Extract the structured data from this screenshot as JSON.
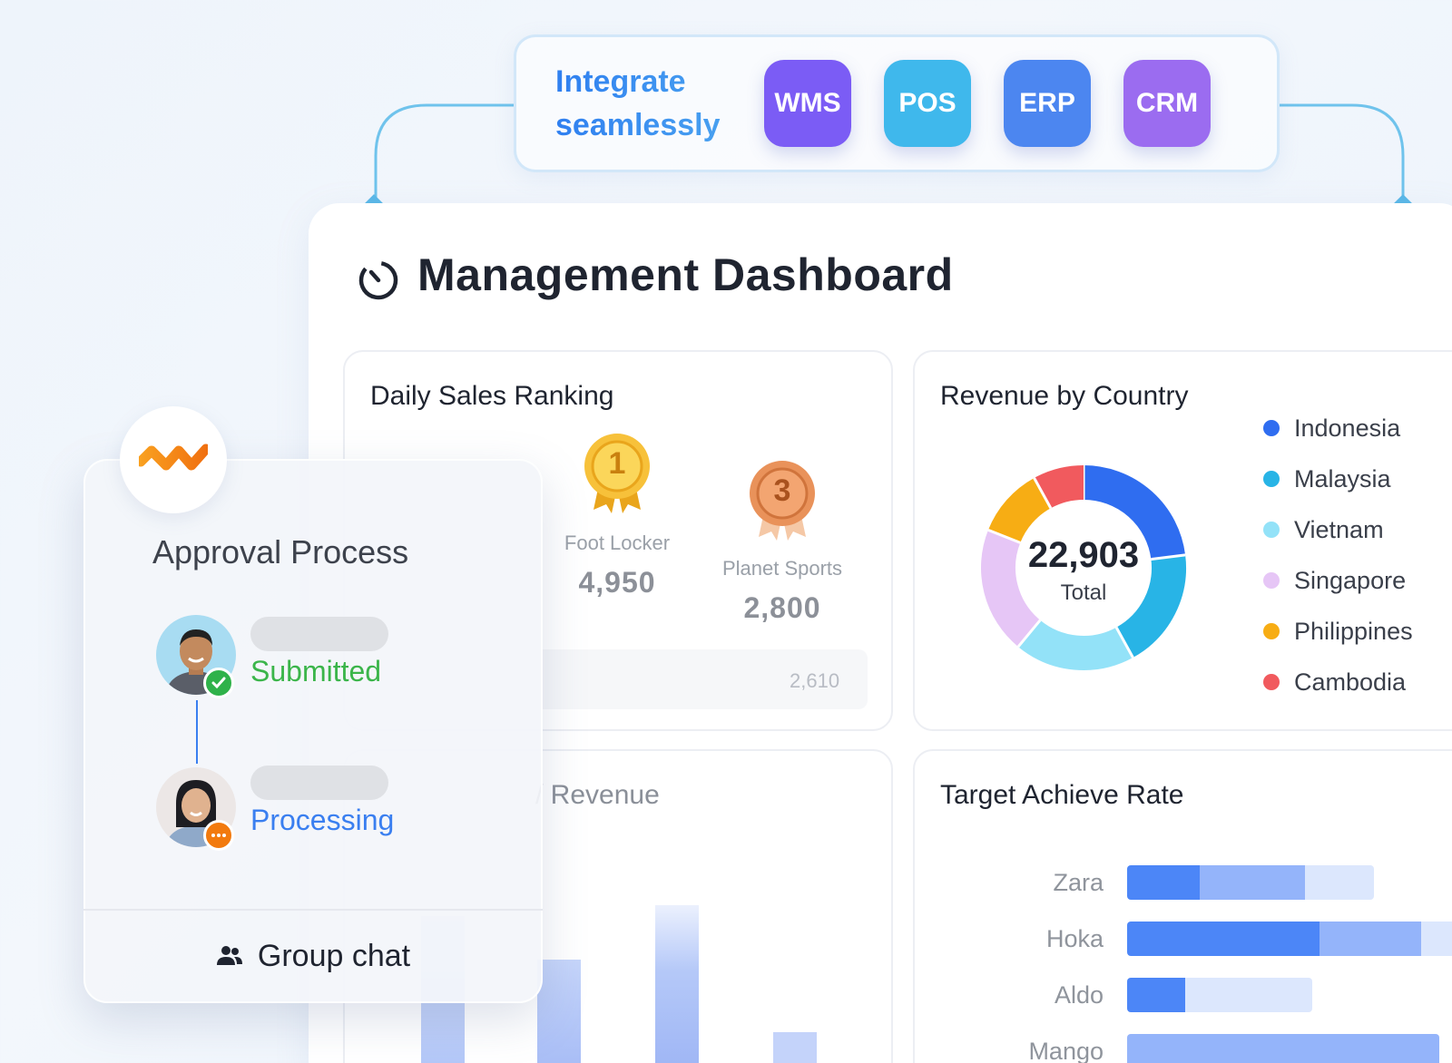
{
  "integrate": {
    "title_line1": "Integrate",
    "title_line2": "seamlessly",
    "systems": [
      {
        "label": "WMS",
        "color": "#7b5cf5"
      },
      {
        "label": "POS",
        "color": "#3fb8ec"
      },
      {
        "label": "ERP",
        "color": "#4c86f0"
      },
      {
        "label": "CRM",
        "color": "#9b6cf0"
      }
    ]
  },
  "dashboard": {
    "title": "Management Dashboard",
    "daily_sales": {
      "title": "Daily Sales Ranking",
      "ranks": [
        {
          "rank": "1",
          "name": "Foot Locker",
          "value": "4,950"
        },
        {
          "rank": "3",
          "name": "Planet Sports",
          "value": "2,800"
        }
      ],
      "row_value": "2,610"
    },
    "revenue_partial_title": "/ Revenue",
    "revenue_by_country": {
      "title": "Revenue by Country",
      "total_value": "22,903",
      "total_label": "Total",
      "countries": [
        {
          "name": "Indonesia",
          "color": "#2f6df0",
          "share": 0.23
        },
        {
          "name": "Malaysia",
          "color": "#28b4e6",
          "share": 0.19
        },
        {
          "name": "Vietnam",
          "color": "#93e2f8",
          "share": 0.19
        },
        {
          "name": "Singapore",
          "color": "#e6c6f6",
          "share": 0.2
        },
        {
          "name": "Philippines",
          "color": "#f7ad14",
          "share": 0.11
        },
        {
          "name": "Cambodia",
          "color": "#f15a5e",
          "share": 0.08
        }
      ]
    },
    "target_rate": {
      "title": "Target Achieve Rate",
      "brands": [
        {
          "name": "Zara",
          "segments": [
            0.2,
            0.29,
            0.19
          ]
        },
        {
          "name": "Hoka",
          "segments": [
            0.53,
            0.28,
            0.19
          ]
        },
        {
          "name": "Aldo",
          "segments": [
            0.16,
            0,
            0.35
          ]
        },
        {
          "name": "Mango",
          "segments": [
            0,
            0.86,
            0
          ]
        }
      ]
    }
  },
  "approval": {
    "title": "Approval Process",
    "steps": [
      {
        "status": "Submitted",
        "status_color": "#3bb54a"
      },
      {
        "status": "Processing",
        "status_color": "#3a7ff0"
      }
    ],
    "group_chat": "Group chat"
  },
  "icons": [
    "timer-icon",
    "medal-gold-icon",
    "medal-bronze-icon",
    "people-icon",
    "check-icon",
    "more-icon",
    "brand-logo-icon"
  ]
}
